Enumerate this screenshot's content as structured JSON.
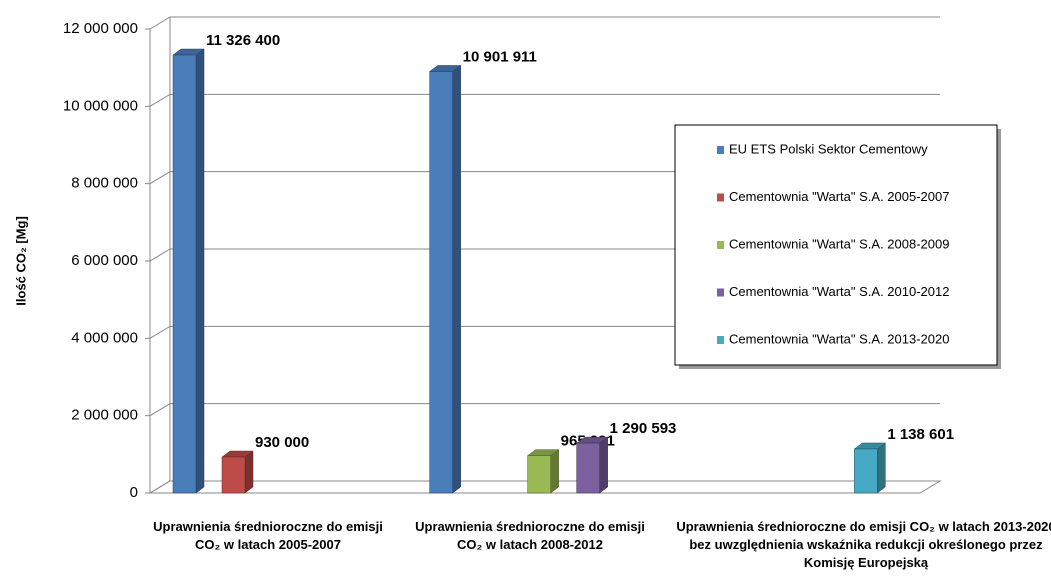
{
  "chart_data": {
    "type": "bar3d",
    "y_label": "Ilość CO₂ [Mg]",
    "categories": [
      "Uprawnienia średnioroczne do emisji CO₂ w latach 2005-2007",
      "Uprawnienia średnioroczne do emisji CO₂ w latach 2008-2012",
      "Uprawnienia średnioroczne do emisji CO₂ w latach 2013-2020 bez uwzględnienia wskaźnika redukcji określonego przez Komisję Europejską"
    ],
    "series": [
      {
        "name": "EU ETS Polski Sektor Cementowy",
        "color": "#4a7ebb",
        "values": [
          11326400,
          10901911,
          null
        ],
        "value_labels": [
          "11 326 400",
          "10 901 911",
          null
        ]
      },
      {
        "name": "Cementownia \"Warta\" S.A. 2005-2007",
        "color": "#be4b48",
        "values": [
          930000,
          null,
          null
        ],
        "value_labels": [
          "930 000",
          null,
          null
        ]
      },
      {
        "name": "Cementownia \"Warta\" S.A. 2008-2009",
        "color": "#98b954",
        "values": [
          null,
          965991,
          null
        ],
        "value_labels": [
          null,
          "965 991",
          null
        ]
      },
      {
        "name": "Cementownia \"Warta\" S.A. 2010-2012",
        "color": "#7d60a0",
        "values": [
          null,
          1290593,
          null
        ],
        "value_labels": [
          null,
          "1 290 593",
          null
        ]
      },
      {
        "name": "Cementownia \"Warta\" S.A. 2013-2020",
        "color": "#46aac5",
        "values": [
          null,
          null,
          1138601
        ],
        "value_labels": [
          null,
          null,
          "1 138 601"
        ]
      }
    ],
    "ylim": [
      0,
      12000000
    ],
    "yticks": [
      0,
      {
        "value": 2000000,
        "label": "2 000 000"
      },
      {
        "value": 4000000,
        "label": "4 000 000"
      },
      {
        "value": 6000000,
        "label": "6 000 000"
      },
      {
        "value": 8000000,
        "label": "8 000 000"
      },
      {
        "value": 10000000,
        "label": "10 000 000"
      },
      {
        "value": 12000000,
        "label": "12 000 000"
      }
    ],
    "grid": true,
    "legend": "right"
  }
}
